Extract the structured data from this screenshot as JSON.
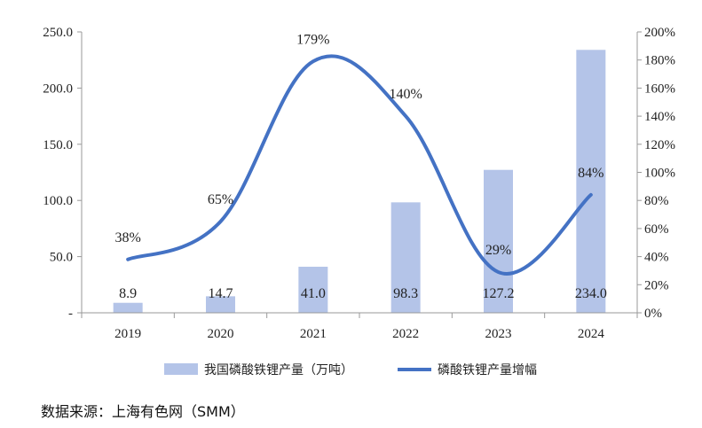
{
  "chart_data": {
    "type": "bar+line",
    "categories": [
      "2019",
      "2020",
      "2021",
      "2022",
      "2023",
      "2024"
    ],
    "series": [
      {
        "name": "我国磷酸铁锂产量（万吨）",
        "type": "bar",
        "axis": "left",
        "values": [
          8.9,
          14.7,
          41.0,
          98.3,
          127.2,
          234.0
        ],
        "labels": [
          "8.9",
          "14.7",
          "41.0",
          "98.3",
          "127.2",
          "234.0"
        ],
        "color": "#b4c4e8"
      },
      {
        "name": "磷酸铁锂产量增幅",
        "type": "line",
        "axis": "right",
        "values": [
          38,
          65,
          179,
          140,
          29,
          84
        ],
        "labels": [
          "38%",
          "65%",
          "179%",
          "140%",
          "29%",
          "84%"
        ],
        "color": "#4472c4"
      }
    ],
    "left_axis": {
      "ylim": [
        0,
        250
      ],
      "ticks": [
        0,
        50,
        100,
        150,
        200,
        250
      ],
      "tick_labels": [
        "-",
        "50.0",
        "100.0",
        "150.0",
        "200.0",
        "250.0"
      ]
    },
    "right_axis": {
      "ylim": [
        0,
        200
      ],
      "ticks": [
        0,
        20,
        40,
        60,
        80,
        100,
        120,
        140,
        160,
        180,
        200
      ],
      "tick_labels": [
        "0%",
        "20%",
        "40%",
        "60%",
        "80%",
        "100%",
        "120%",
        "140%",
        "160%",
        "180%",
        "200%"
      ]
    },
    "grid": false,
    "legend": "bottom",
    "source": "数据来源：上海有色网（SMM）"
  }
}
